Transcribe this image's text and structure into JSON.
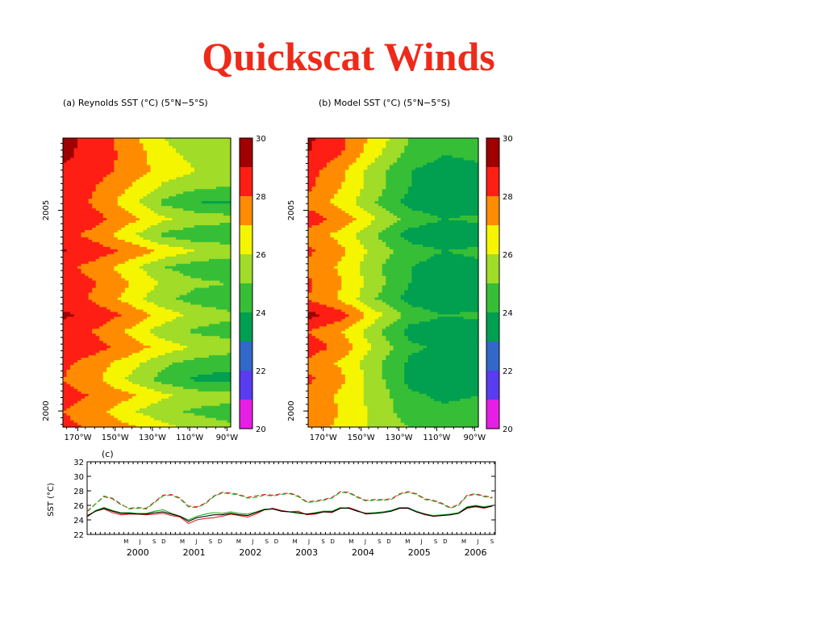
{
  "slide": {
    "title": "Quickscat Winds"
  },
  "colors": {
    "title": "#ee2a1b",
    "levels": [
      "#e61ee6",
      "#5a3cf0",
      "#3268c8",
      "#00a050",
      "#37be37",
      "#a0dc28",
      "#f5f500",
      "#ff8c00",
      "#ff1e14",
      "#a00000"
    ]
  },
  "chart_data": [
    {
      "type": "heatmap",
      "title": "(a) Reynolds SST (°C) (5°N−5°S)",
      "x_ticks": [
        "170°W",
        "150°W",
        "130°W",
        "110°W",
        "90°W"
      ],
      "x_tick_values": [
        -170,
        -150,
        -130,
        -110,
        -90
      ],
      "x_range": [
        -178,
        -88
      ],
      "y_ticks": [
        "2000",
        "2005"
      ],
      "y_tick_values": [
        2000,
        2005
      ],
      "y_range": [
        1999.6,
        2006.8
      ],
      "colorbar": {
        "levels": [
          20,
          21,
          22,
          23,
          24,
          25,
          26,
          27,
          28,
          29,
          30
        ],
        "tick_labels": [
          "20",
          "22",
          "24",
          "26",
          "28",
          "30"
        ]
      },
      "time": [
        1999.6,
        2000.0,
        2000.4,
        2000.8,
        2001.2,
        2001.6,
        2002.0,
        2002.4,
        2002.8,
        2003.2,
        2003.6,
        2004.0,
        2004.4,
        2004.8,
        2005.2,
        2005.6,
        2006.0,
        2006.4,
        2006.8
      ],
      "profile_west_east": [
        [
          28.3,
          27.8,
          27.2,
          26.4,
          25.6,
          25.2
        ],
        [
          28.0,
          27.4,
          26.2,
          25.2,
          24.8,
          24.6
        ],
        [
          28.4,
          27.9,
          27.2,
          26.2,
          25.6,
          25.4
        ],
        [
          28.0,
          27.2,
          25.8,
          24.6,
          23.8,
          23.6
        ],
        [
          28.2,
          27.5,
          26.4,
          25.2,
          24.6,
          24.4
        ],
        [
          28.8,
          28.3,
          27.6,
          26.6,
          25.8,
          25.4
        ],
        [
          28.5,
          27.9,
          26.8,
          25.4,
          24.8,
          24.6
        ],
        [
          29.2,
          28.6,
          27.8,
          26.6,
          25.6,
          25.2
        ],
        [
          28.5,
          27.8,
          26.6,
          25.2,
          24.6,
          24.4
        ],
        [
          28.6,
          28.0,
          27.0,
          25.8,
          25.2,
          25.0
        ],
        [
          28.3,
          27.6,
          26.4,
          25.0,
          24.4,
          24.2
        ],
        [
          29.1,
          28.5,
          27.8,
          26.8,
          26.0,
          25.8
        ],
        [
          28.4,
          27.6,
          26.2,
          24.8,
          24.2,
          24.0
        ],
        [
          29.0,
          28.3,
          27.4,
          26.2,
          25.6,
          25.4
        ],
        [
          28.6,
          27.8,
          26.4,
          24.8,
          24.0,
          23.8
        ],
        [
          28.8,
          28.0,
          27.0,
          25.8,
          25.2,
          25.0
        ],
        [
          28.9,
          28.4,
          27.6,
          26.6,
          26.0,
          25.8
        ],
        [
          29.2,
          28.6,
          27.6,
          26.4,
          25.6,
          25.4
        ],
        [
          29.3,
          28.6,
          27.4,
          26.0,
          25.2,
          25.0
        ]
      ]
    },
    {
      "type": "heatmap",
      "title": "(b) Model SST (°C) (5°N−5°S)",
      "x_ticks": [
        "170°W",
        "150°W",
        "130°W",
        "110°W",
        "90°W"
      ],
      "x_tick_values": [
        -170,
        -150,
        -130,
        -110,
        -90
      ],
      "x_range": [
        -178,
        -88
      ],
      "y_ticks": [
        "2000",
        "2005"
      ],
      "y_tick_values": [
        2000,
        2005
      ],
      "y_range": [
        1999.6,
        2006.8
      ],
      "colorbar": {
        "levels": [
          20,
          21,
          22,
          23,
          24,
          25,
          26,
          27,
          28,
          29,
          30
        ],
        "tick_labels": [
          "20",
          "22",
          "24",
          "26",
          "28",
          "30"
        ]
      },
      "time": [
        1999.6,
        2000.0,
        2000.4,
        2000.8,
        2001.2,
        2001.6,
        2002.0,
        2002.4,
        2002.8,
        2003.2,
        2003.6,
        2004.0,
        2004.4,
        2004.8,
        2005.2,
        2005.6,
        2006.0,
        2006.4,
        2006.8
      ],
      "profile_west_east": [
        [
          27.4,
          26.8,
          25.8,
          25.0,
          24.8,
          24.8
        ],
        [
          27.8,
          26.9,
          25.6,
          24.4,
          24.2,
          24.4
        ],
        [
          27.6,
          26.8,
          25.6,
          24.2,
          23.8,
          24.0
        ],
        [
          28.2,
          27.2,
          25.4,
          23.6,
          23.0,
          23.2
        ],
        [
          27.8,
          26.8,
          25.2,
          23.8,
          23.4,
          23.6
        ],
        [
          28.6,
          27.6,
          25.8,
          24.2,
          23.8,
          23.8
        ],
        [
          28.0,
          27.0,
          25.2,
          23.6,
          23.4,
          23.6
        ],
        [
          29.4,
          28.4,
          26.4,
          24.6,
          24.0,
          24.2
        ],
        [
          28.0,
          26.8,
          25.0,
          23.6,
          23.2,
          23.4
        ],
        [
          28.2,
          27.0,
          25.4,
          24.0,
          23.6,
          23.8
        ],
        [
          27.8,
          26.8,
          25.2,
          24.0,
          23.6,
          23.8
        ],
        [
          28.2,
          27.2,
          25.6,
          24.4,
          24.0,
          24.2
        ],
        [
          27.6,
          26.6,
          25.0,
          23.6,
          23.2,
          23.4
        ],
        [
          28.6,
          27.6,
          26.0,
          24.6,
          24.0,
          24.2
        ],
        [
          27.6,
          26.6,
          25.0,
          23.6,
          23.2,
          23.4
        ],
        [
          28.2,
          27.0,
          25.4,
          24.0,
          23.6,
          23.8
        ],
        [
          28.4,
          27.2,
          25.4,
          24.0,
          23.6,
          23.8
        ],
        [
          29.0,
          28.0,
          26.2,
          24.6,
          24.0,
          24.2
        ],
        [
          29.2,
          28.2,
          26.6,
          25.0,
          24.4,
          24.4
        ]
      ]
    },
    {
      "type": "line",
      "title": "(c)",
      "ylabel": "SST (°C)",
      "ylim": [
        22,
        32
      ],
      "y_ticks": [
        22,
        24,
        26,
        28,
        30,
        32
      ],
      "xlim": [
        1999.6,
        2006.85
      ],
      "year_labels": [
        "2000",
        "2001",
        "2002",
        "2003",
        "2004",
        "2005",
        "2006"
      ],
      "month_labels": [
        "M",
        "J",
        "S",
        "D"
      ],
      "x": [
        1999.6,
        1999.75,
        1999.9,
        2000.05,
        2000.2,
        2000.35,
        2000.5,
        2000.65,
        2000.8,
        2000.95,
        2001.1,
        2001.25,
        2001.4,
        2001.55,
        2001.7,
        2001.85,
        2002.0,
        2002.15,
        2002.3,
        2002.45,
        2002.6,
        2002.75,
        2002.9,
        2003.05,
        2003.2,
        2003.35,
        2003.5,
        2003.65,
        2003.8,
        2003.95,
        2004.1,
        2004.25,
        2004.4,
        2004.55,
        2004.7,
        2004.85,
        2005.0,
        2005.15,
        2005.3,
        2005.45,
        2005.6,
        2005.75,
        2005.9,
        2006.05,
        2006.2,
        2006.35,
        2006.5,
        2006.65,
        2006.8
      ],
      "series": [
        {
          "color": "#e02020",
          "dash": "dashed",
          "values": [
            25.2,
            26.2,
            27.2,
            26.9,
            26.1,
            25.6,
            25.7,
            25.6,
            26.5,
            27.4,
            27.5,
            27.0,
            25.9,
            25.8,
            26.3,
            27.3,
            27.8,
            27.7,
            27.5,
            27.1,
            27.3,
            27.5,
            27.4,
            27.6,
            27.7,
            27.3,
            26.5,
            26.6,
            26.8,
            27.1,
            27.9,
            27.8,
            27.2,
            26.7,
            26.8,
            26.8,
            26.9,
            27.6,
            27.9,
            27.6,
            26.9,
            26.7,
            26.3,
            25.7,
            26.1,
            27.4,
            27.6,
            27.3,
            27.1
          ]
        },
        {
          "color": "#20b020",
          "dash": "dashed",
          "values": [
            25.1,
            26.2,
            27.3,
            27.0,
            26.2,
            25.5,
            25.6,
            25.5,
            26.4,
            27.3,
            27.4,
            26.9,
            25.8,
            25.7,
            26.2,
            27.2,
            27.7,
            27.6,
            27.4,
            27.0,
            27.1,
            27.4,
            27.3,
            27.5,
            27.6,
            27.2,
            26.4,
            26.5,
            26.7,
            27.0,
            27.8,
            27.7,
            27.1,
            26.6,
            26.7,
            26.7,
            26.8,
            27.5,
            27.8,
            27.5,
            26.8,
            26.6,
            26.2,
            25.6,
            26.0,
            27.3,
            27.5,
            27.2,
            27.0
          ]
        },
        {
          "color": "#e02020",
          "dash": "solid",
          "values": [
            24.6,
            25.2,
            25.5,
            25.0,
            24.7,
            24.8,
            24.8,
            24.7,
            24.8,
            24.9,
            24.6,
            24.4,
            23.5,
            24.0,
            24.2,
            24.3,
            24.5,
            24.8,
            24.6,
            24.4,
            24.8,
            25.4,
            25.6,
            25.3,
            25.1,
            25.2,
            24.7,
            24.8,
            25.1,
            25.0,
            25.6,
            25.7,
            25.3,
            24.8,
            24.9,
            25.0,
            25.2,
            25.6,
            25.6,
            25.1,
            24.7,
            24.5,
            24.6,
            24.7,
            24.9,
            25.6,
            25.8,
            25.6,
            25.9
          ]
        },
        {
          "color": "#20b020",
          "dash": "solid",
          "values": [
            24.4,
            25.3,
            25.7,
            25.3,
            25.0,
            25.0,
            24.9,
            24.9,
            25.2,
            25.4,
            24.9,
            24.5,
            24.0,
            24.5,
            24.8,
            25.0,
            24.9,
            25.1,
            24.9,
            24.8,
            25.1,
            25.5,
            25.5,
            25.2,
            25.1,
            24.9,
            24.8,
            25.0,
            25.2,
            25.2,
            25.7,
            25.6,
            25.2,
            24.9,
            25.0,
            25.1,
            25.3,
            25.7,
            25.7,
            25.2,
            24.8,
            24.6,
            24.7,
            24.8,
            25.0,
            25.8,
            26.0,
            25.8,
            26.0
          ]
        },
        {
          "color": "#000000",
          "dash": "solid",
          "values": [
            24.5,
            25.2,
            25.6,
            25.2,
            24.9,
            24.9,
            24.8,
            24.8,
            25.0,
            25.1,
            24.8,
            24.5,
            23.8,
            24.3,
            24.5,
            24.7,
            24.7,
            24.9,
            24.7,
            24.6,
            25.0,
            25.4,
            25.5,
            25.2,
            25.1,
            25.0,
            24.8,
            24.9,
            25.1,
            25.1,
            25.6,
            25.6,
            25.2,
            24.9,
            24.9,
            25.0,
            25.2,
            25.6,
            25.6,
            25.1,
            24.8,
            24.5,
            24.6,
            24.7,
            24.9,
            25.7,
            25.9,
            25.7,
            25.9
          ]
        }
      ]
    }
  ]
}
